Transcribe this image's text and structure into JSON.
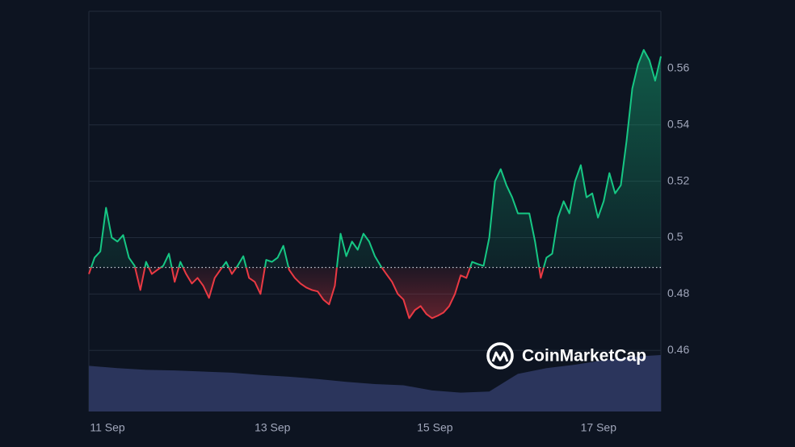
{
  "chart_data": {
    "type": "line",
    "watermark": "CoinMarketCap",
    "xlim": [
      0,
      100
    ],
    "xticks": [
      {
        "value": 3.25,
        "label": "11 Sep"
      },
      {
        "value": 32.1,
        "label": "13 Sep"
      },
      {
        "value": 60.5,
        "label": "15 Sep"
      },
      {
        "value": 89.1,
        "label": "17 Sep"
      }
    ],
    "ylim": [
      0.4383,
      0.5803
    ],
    "yticks": [
      0.46,
      0.48,
      0.5,
      0.52,
      0.54,
      0.56
    ],
    "grid": true,
    "baseline": 0.4894,
    "up_color": "#16c784",
    "down_color": "#ea3943",
    "series": [
      {
        "values": [
          0.4871,
          0.4929,
          0.4951,
          0.5106,
          0.5,
          0.4986,
          0.5009,
          0.4929,
          0.49,
          0.4814,
          0.4914,
          0.4871,
          0.4886,
          0.49,
          0.4943,
          0.4843,
          0.4914,
          0.4871,
          0.4837,
          0.4857,
          0.4829,
          0.4786,
          0.4857,
          0.4886,
          0.4914,
          0.4871,
          0.49,
          0.4934,
          0.4857,
          0.4843,
          0.48,
          0.4921,
          0.4914,
          0.4929,
          0.4971,
          0.4886,
          0.4857,
          0.4837,
          0.4823,
          0.4814,
          0.4809,
          0.478,
          0.4763,
          0.4829,
          0.5014,
          0.4934,
          0.4986,
          0.4957,
          0.5014,
          0.4986,
          0.4934,
          0.49,
          0.4871,
          0.4843,
          0.48,
          0.478,
          0.4714,
          0.4743,
          0.4757,
          0.4729,
          0.4714,
          0.4723,
          0.4734,
          0.4757,
          0.48,
          0.4866,
          0.4857,
          0.4914,
          0.4906,
          0.49,
          0.5,
          0.52,
          0.5243,
          0.5186,
          0.5143,
          0.5086,
          0.5086,
          0.5086,
          0.4986,
          0.4857,
          0.4929,
          0.4943,
          0.5071,
          0.5129,
          0.5086,
          0.52,
          0.5257,
          0.5143,
          0.5157,
          0.5071,
          0.5129,
          0.5229,
          0.5157,
          0.5186,
          0.5343,
          0.5529,
          0.5614,
          0.5666,
          0.5629,
          0.5557,
          0.5643
        ]
      }
    ],
    "volume": {
      "color": "#2b355c",
      "values": [
        80,
        76,
        73,
        72,
        70,
        68,
        64,
        61,
        57,
        52,
        48,
        46,
        37,
        33,
        35,
        66,
        76,
        82,
        90,
        96,
        99
      ]
    }
  }
}
